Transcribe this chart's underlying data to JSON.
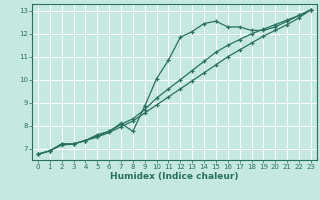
{
  "title": "",
  "xlabel": "Humidex (Indice chaleur)",
  "ylabel": "",
  "bg_color": "#c5e8e0",
  "grid_color": "#ffffff",
  "line_color": "#2a7060",
  "xlim": [
    -0.5,
    23.5
  ],
  "ylim": [
    6.5,
    13.3
  ],
  "xticks": [
    0,
    1,
    2,
    3,
    4,
    5,
    6,
    7,
    8,
    9,
    10,
    11,
    12,
    13,
    14,
    15,
    16,
    17,
    18,
    19,
    20,
    21,
    22,
    23
  ],
  "yticks": [
    7,
    8,
    9,
    10,
    11,
    12,
    13
  ],
  "line1_x": [
    0,
    1,
    2,
    3,
    4,
    5,
    6,
    7,
    8,
    9,
    10,
    11,
    12,
    13,
    14,
    15,
    16,
    17,
    18,
    19,
    20,
    21,
    22,
    23
  ],
  "line1_y": [
    6.75,
    6.9,
    7.2,
    7.2,
    7.35,
    7.6,
    7.75,
    8.1,
    7.75,
    8.85,
    10.05,
    10.85,
    11.85,
    12.1,
    12.45,
    12.55,
    12.3,
    12.3,
    12.15,
    12.15,
    12.3,
    12.55,
    12.8,
    13.05
  ],
  "line2_x": [
    0,
    1,
    2,
    3,
    4,
    5,
    6,
    7,
    8,
    9,
    10,
    11,
    12,
    13,
    14,
    15,
    16,
    17,
    18,
    19,
    20,
    21,
    22,
    23
  ],
  "line2_y": [
    6.75,
    6.9,
    7.2,
    7.2,
    7.35,
    7.55,
    7.75,
    8.05,
    8.3,
    8.7,
    9.2,
    9.6,
    10.0,
    10.4,
    10.8,
    11.2,
    11.5,
    11.75,
    12.0,
    12.2,
    12.4,
    12.6,
    12.8,
    13.05
  ],
  "line3_x": [
    0,
    1,
    2,
    3,
    4,
    5,
    6,
    7,
    8,
    9,
    10,
    11,
    12,
    13,
    14,
    15,
    16,
    17,
    18,
    19,
    20,
    21,
    22,
    23
  ],
  "line3_y": [
    6.75,
    6.9,
    7.15,
    7.2,
    7.35,
    7.5,
    7.7,
    7.95,
    8.2,
    8.55,
    8.9,
    9.25,
    9.6,
    9.95,
    10.3,
    10.65,
    11.0,
    11.3,
    11.6,
    11.9,
    12.15,
    12.4,
    12.7,
    13.05
  ]
}
